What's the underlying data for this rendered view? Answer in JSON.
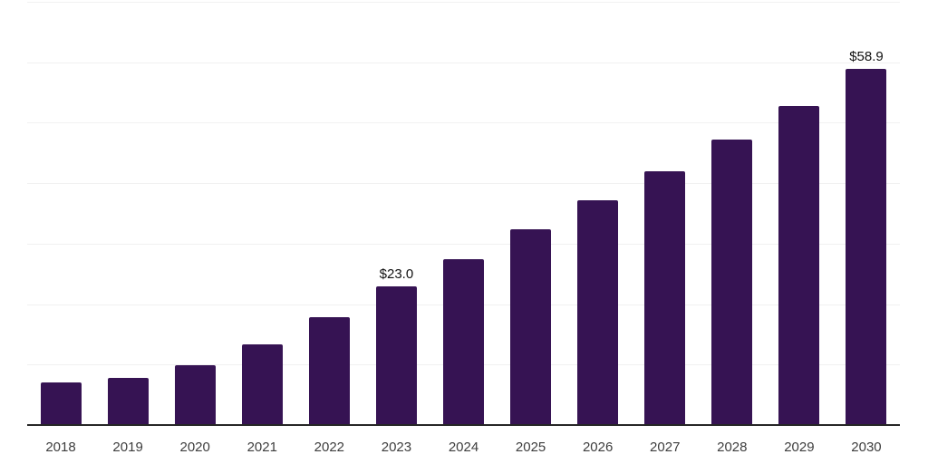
{
  "page": {
    "background": "#ffffff"
  },
  "chart_data": {
    "type": "bar",
    "title": "",
    "xlabel": "",
    "ylabel": "",
    "categories": [
      "2018",
      "2019",
      "2020",
      "2021",
      "2022",
      "2023",
      "2024",
      "2025",
      "2026",
      "2027",
      "2028",
      "2029",
      "2030"
    ],
    "values": [
      7.0,
      7.8,
      9.9,
      13.4,
      17.8,
      23.0,
      27.5,
      32.4,
      37.2,
      42.0,
      47.2,
      52.8,
      58.9
    ],
    "value_labels": {
      "2023": "$23.0",
      "2030": "$58.9"
    },
    "ylim": [
      0,
      70
    ],
    "gridline_step": 10,
    "grid": true,
    "legend": false,
    "colors": {
      "background": "#ffffff",
      "bar": "#361353",
      "gridline": "#f1f1f1",
      "axis_line": "#262626",
      "tick_label": "#3d3d3d",
      "value_label": "#111111"
    }
  }
}
